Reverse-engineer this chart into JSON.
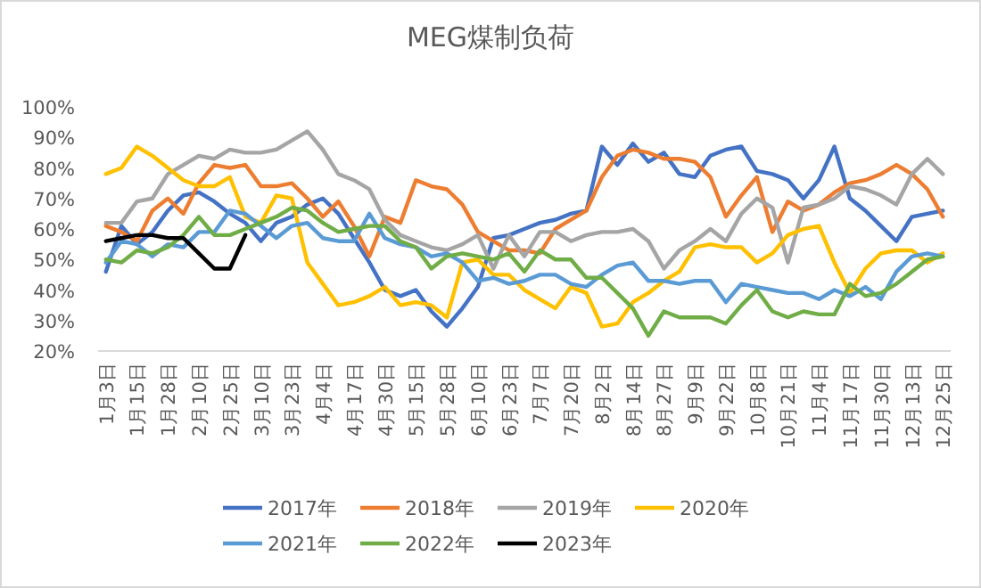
{
  "chart_data": {
    "type": "line",
    "title": "MEG煤制负荷",
    "categories": [
      "1月3日",
      null,
      "1月15日",
      null,
      "1月28日",
      null,
      "2月10日",
      null,
      "2月25日",
      null,
      "3月10日",
      null,
      "3月23日",
      null,
      "4月4日",
      null,
      "4月17日",
      null,
      "4月30日",
      null,
      "5月15日",
      null,
      "5月28日",
      null,
      "6月10日",
      null,
      "6月23日",
      null,
      "7月7日",
      null,
      "7月20日",
      null,
      "8月2日",
      null,
      "8月14日",
      null,
      "8月27日",
      null,
      "9月9日",
      null,
      "9月22日",
      null,
      "10月8日",
      null,
      "10月21日",
      null,
      "11月4日",
      null,
      "11月17日",
      null,
      "11月30日",
      null,
      "12月13日",
      null,
      "12月25日"
    ],
    "series": [
      {
        "name": "2017年",
        "color": "#4472c4",
        "values": [
          46,
          61,
          55,
          59,
          66,
          71,
          72,
          69,
          65,
          62,
          56,
          62,
          64,
          68,
          70,
          65,
          57,
          49,
          40,
          38,
          40,
          33,
          28,
          34,
          41,
          57,
          58,
          60,
          62,
          63,
          65,
          66,
          87,
          81,
          88,
          82,
          85,
          78,
          77,
          84,
          86,
          87,
          79,
          78,
          76,
          70,
          76,
          87,
          70,
          66,
          61,
          56,
          64,
          65,
          66
        ]
      },
      {
        "name": "2018年",
        "color": "#ed7d31",
        "values": [
          61,
          59,
          56,
          66,
          70,
          65,
          75,
          81,
          80,
          81,
          74,
          74,
          75,
          70,
          64,
          69,
          61,
          51,
          64,
          62,
          76,
          74,
          73,
          68,
          59,
          56,
          53,
          53,
          52,
          60,
          63,
          66,
          77,
          84,
          86,
          85,
          83,
          83,
          82,
          77,
          64,
          71,
          77,
          59,
          69,
          66,
          68,
          72,
          75,
          76,
          78,
          81,
          78,
          73,
          64
        ]
      },
      {
        "name": "2019年",
        "color": "#a5a5a5",
        "values": [
          62,
          62,
          69,
          70,
          78,
          81,
          84,
          83,
          86,
          85,
          85,
          86,
          89,
          92,
          86,
          78,
          76,
          73,
          63,
          58,
          56,
          54,
          53,
          55,
          58,
          47,
          58,
          51,
          59,
          59,
          56,
          58,
          59,
          59,
          60,
          56,
          47,
          53,
          56,
          60,
          56,
          65,
          70,
          67,
          49,
          67,
          68,
          70,
          74,
          73,
          71,
          68,
          78,
          83,
          78
        ]
      },
      {
        "name": "2020年",
        "color": "#ffc000",
        "values": [
          78,
          80,
          87,
          84,
          80,
          76,
          74,
          74,
          77,
          64,
          62,
          71,
          70,
          49,
          42,
          35,
          36,
          38,
          41,
          35,
          36,
          35,
          31,
          49,
          50,
          45,
          45,
          40,
          37,
          34,
          41,
          39,
          28,
          29,
          36,
          39,
          43,
          46,
          54,
          55,
          54,
          54,
          49,
          52,
          58,
          60,
          61,
          49,
          39,
          47,
          52,
          53,
          53,
          49,
          52
        ]
      },
      {
        "name": "2021年",
        "color": "#5b9bd5",
        "values": [
          49,
          56,
          55,
          51,
          55,
          54,
          59,
          59,
          66,
          65,
          61,
          57,
          61,
          62,
          57,
          56,
          56,
          65,
          57,
          55,
          54,
          51,
          52,
          49,
          43,
          44,
          42,
          43,
          45,
          45,
          42,
          41,
          45,
          48,
          49,
          43,
          43,
          42,
          43,
          43,
          36,
          42,
          41,
          40,
          39,
          39,
          37,
          40,
          38,
          41,
          37,
          46,
          51,
          52,
          51
        ]
      },
      {
        "name": "2022年",
        "color": "#70ad47",
        "values": [
          50,
          49,
          53,
          52,
          54,
          58,
          64,
          58,
          58,
          60,
          62,
          64,
          67,
          66,
          62,
          59,
          60,
          61,
          61,
          56,
          54,
          47,
          51,
          52,
          51,
          50,
          52,
          46,
          53,
          50,
          50,
          44,
          44,
          39,
          34,
          25,
          33,
          31,
          31,
          31,
          29,
          35,
          40,
          33,
          31,
          33,
          32,
          32,
          42,
          38,
          39,
          42,
          46,
          50,
          51
        ]
      },
      {
        "name": "2023年",
        "color": "#000000",
        "values": [
          56,
          57,
          58,
          58,
          57,
          57,
          52,
          47,
          47,
          58,
          null,
          null,
          null,
          null,
          null,
          null,
          null,
          null,
          null,
          null,
          null,
          null,
          null,
          null,
          null,
          null,
          null,
          null,
          null,
          null,
          null,
          null,
          null,
          null,
          null,
          null,
          null,
          null,
          null,
          null,
          null,
          null,
          null,
          null,
          null,
          null,
          null,
          null,
          null,
          null,
          null,
          null,
          null,
          null,
          null
        ]
      }
    ],
    "ylim": [
      20,
      100
    ],
    "yticks": [
      {
        "value": 20,
        "label": "20%"
      },
      {
        "value": 30,
        "label": "30%"
      },
      {
        "value": 40,
        "label": "40%"
      },
      {
        "value": 50,
        "label": "50%"
      },
      {
        "value": 60,
        "label": "60%"
      },
      {
        "value": 70,
        "label": "70%"
      },
      {
        "value": 80,
        "label": "80%"
      },
      {
        "value": 90,
        "label": "90%"
      },
      {
        "value": 100,
        "label": "100%"
      }
    ],
    "grid": false,
    "legend": "bottom"
  }
}
